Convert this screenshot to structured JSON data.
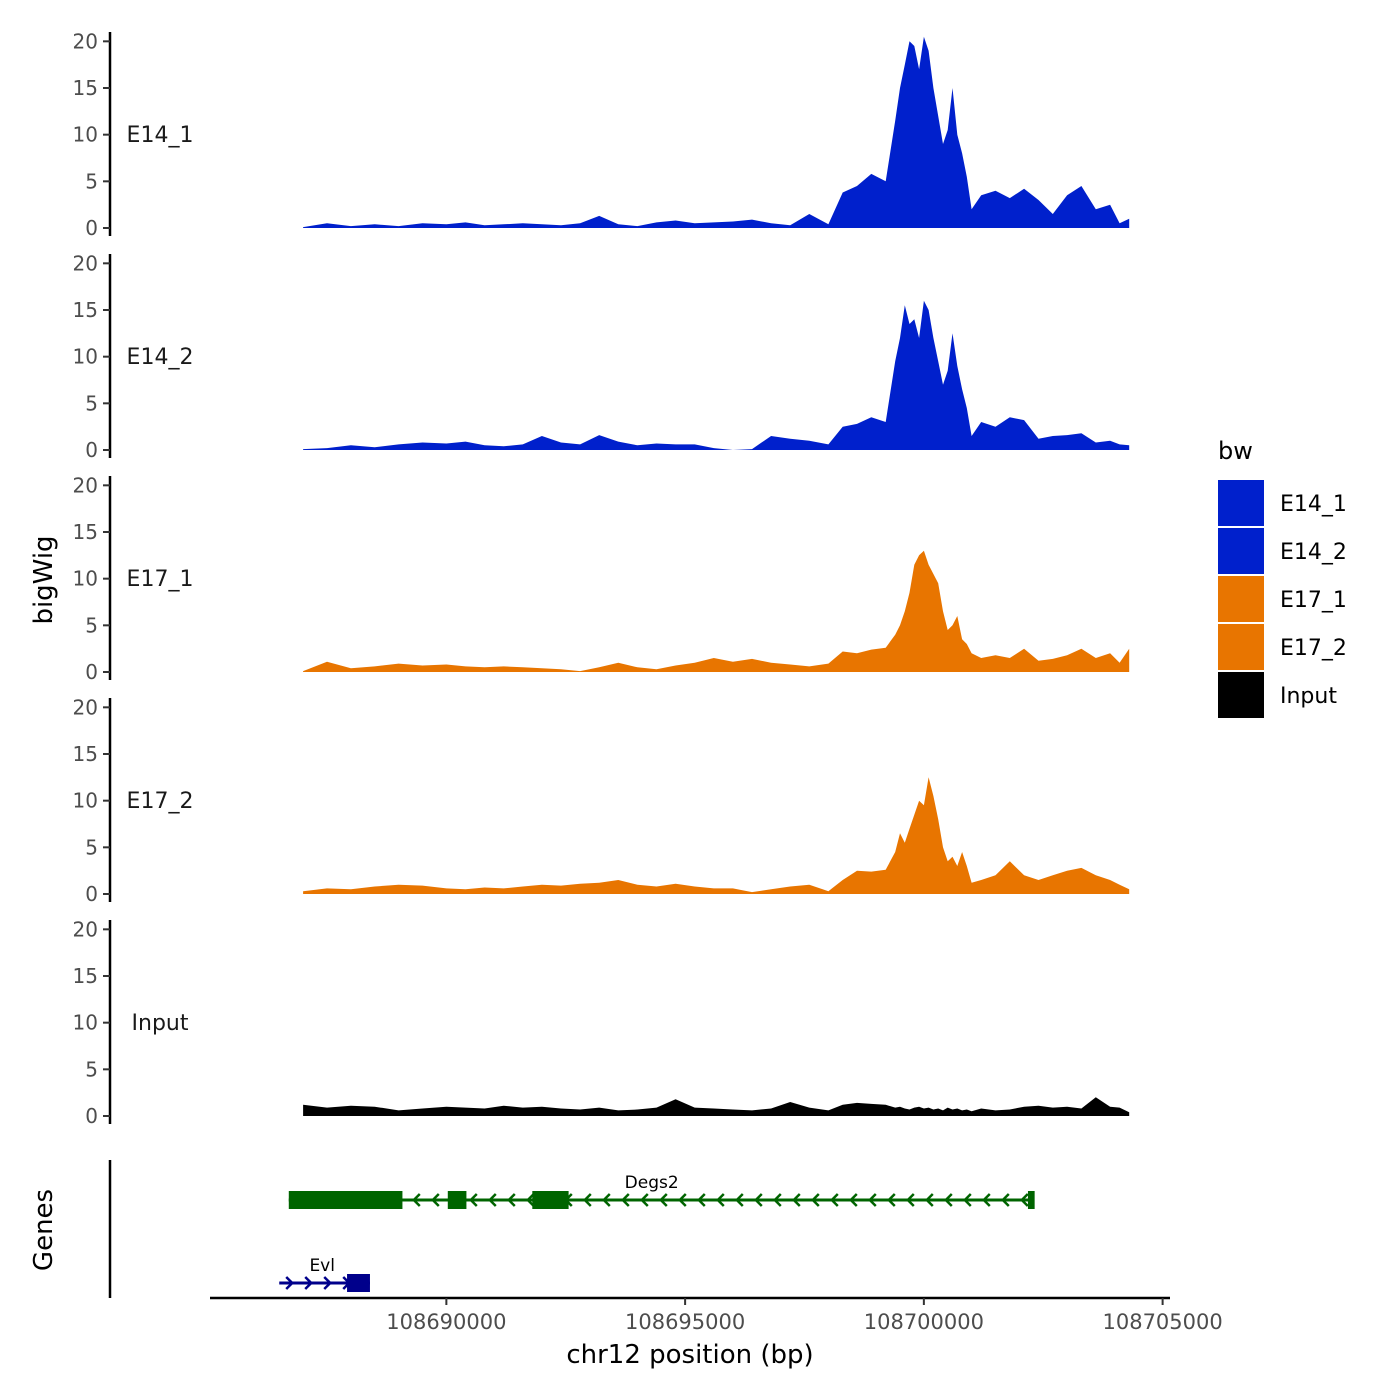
{
  "chart_data": {
    "type": "area",
    "ylabel": "bigWig",
    "genes_label": "Genes",
    "xlabel": "chr12 position (bp)",
    "xlim": [
      108685050,
      108705050
    ],
    "data_xlim": [
      108687000,
      108704300
    ],
    "ylim": [
      0,
      21
    ],
    "y_ticks": [
      "0",
      "5",
      "10",
      "15",
      "20"
    ],
    "x_ticks": [
      {
        "value": 108690000,
        "label": "108690000"
      },
      {
        "value": 108695000,
        "label": "108695000"
      },
      {
        "value": 108700000,
        "label": "108700000"
      },
      {
        "value": 108705000,
        "label": "108705000"
      }
    ],
    "legend": {
      "title": "bw",
      "entries": [
        {
          "label": "E14_1",
          "color": "#0020CC"
        },
        {
          "label": "E14_2",
          "color": "#0020CC"
        },
        {
          "label": "E17_1",
          "color": "#E87500"
        },
        {
          "label": "E17_2",
          "color": "#E87500"
        },
        {
          "label": "Input",
          "color": "#000000"
        }
      ]
    },
    "series": [
      {
        "name": "E14_1",
        "color": "#0020CC",
        "x": [
          108687000,
          108687500,
          108688000,
          108688500,
          108689000,
          108689500,
          108690000,
          108690400,
          108690800,
          108691200,
          108691600,
          108692000,
          108692400,
          108692800,
          108693200,
          108693600,
          108694000,
          108694400,
          108694800,
          108695200,
          108695600,
          108696000,
          108696400,
          108696800,
          108697200,
          108697600,
          108698000,
          108698300,
          108698600,
          108698900,
          108699200,
          108699400,
          108699500,
          108699600,
          108699700,
          108699800,
          108699900,
          108700000,
          108700100,
          108700200,
          108700300,
          108700400,
          108700500,
          108700600,
          108700700,
          108700800,
          108700900,
          108701000,
          108701200,
          108701500,
          108701800,
          108702100,
          108702400,
          108702700,
          108703000,
          108703300,
          108703600,
          108703900,
          108704100,
          108704300
        ],
        "values": [
          0.1,
          0.5,
          0.2,
          0.4,
          0.2,
          0.5,
          0.4,
          0.6,
          0.3,
          0.4,
          0.5,
          0.4,
          0.3,
          0.5,
          1.3,
          0.4,
          0.2,
          0.6,
          0.8,
          0.5,
          0.6,
          0.7,
          0.9,
          0.5,
          0.3,
          1.5,
          0.4,
          3.8,
          4.5,
          5.8,
          5.0,
          11.5,
          15.0,
          17.5,
          20.0,
          19.5,
          17.0,
          20.5,
          19.0,
          15.0,
          12.0,
          9.0,
          10.5,
          15.0,
          10.0,
          8.0,
          5.5,
          2.0,
          3.5,
          4.0,
          3.2,
          4.2,
          3.0,
          1.5,
          3.5,
          4.5,
          2.0,
          2.5,
          0.5,
          1.0
        ]
      },
      {
        "name": "E14_2",
        "color": "#0020CC",
        "x": [
          108687000,
          108687500,
          108688000,
          108688500,
          108689000,
          108689500,
          108690000,
          108690400,
          108690800,
          108691200,
          108691600,
          108692000,
          108692400,
          108692800,
          108693200,
          108693600,
          108694000,
          108694400,
          108694800,
          108695200,
          108695600,
          108696000,
          108696400,
          108696800,
          108697200,
          108697600,
          108698000,
          108698300,
          108698600,
          108698900,
          108699200,
          108699400,
          108699500,
          108699600,
          108699700,
          108699800,
          108699900,
          108700000,
          108700100,
          108700200,
          108700300,
          108700400,
          108700500,
          108700600,
          108700700,
          108700800,
          108700900,
          108701000,
          108701200,
          108701500,
          108701800,
          108702100,
          108702400,
          108702700,
          108703000,
          108703300,
          108703600,
          108703900,
          108704100,
          108704300
        ],
        "values": [
          0.1,
          0.2,
          0.5,
          0.3,
          0.6,
          0.8,
          0.7,
          0.9,
          0.5,
          0.4,
          0.6,
          1.5,
          0.8,
          0.6,
          1.6,
          0.9,
          0.5,
          0.7,
          0.6,
          0.6,
          0.2,
          0.0,
          0.1,
          1.5,
          1.2,
          1.0,
          0.6,
          2.5,
          2.8,
          3.5,
          3.0,
          9.5,
          12.0,
          15.5,
          13.5,
          14.0,
          12.0,
          16.0,
          15.0,
          12.0,
          9.5,
          7.0,
          8.5,
          12.5,
          9.0,
          6.5,
          4.5,
          1.5,
          3.0,
          2.5,
          3.5,
          3.2,
          1.2,
          1.5,
          1.6,
          1.8,
          0.8,
          1.0,
          0.6,
          0.5
        ]
      },
      {
        "name": "E17_1",
        "color": "#E87500",
        "x": [
          108687000,
          108687500,
          108688000,
          108688500,
          108689000,
          108689500,
          108690000,
          108690400,
          108690800,
          108691200,
          108691600,
          108692000,
          108692400,
          108692800,
          108693200,
          108693600,
          108694000,
          108694400,
          108694800,
          108695200,
          108695600,
          108696000,
          108696400,
          108696800,
          108697200,
          108697600,
          108698000,
          108698300,
          108698600,
          108698900,
          108699200,
          108699400,
          108699500,
          108699600,
          108699700,
          108699800,
          108699900,
          108700000,
          108700100,
          108700200,
          108700300,
          108700400,
          108700500,
          108700600,
          108700700,
          108700800,
          108700900,
          108701000,
          108701200,
          108701500,
          108701800,
          108702100,
          108702400,
          108702700,
          108703000,
          108703300,
          108703600,
          108703900,
          108704100,
          108704300
        ],
        "values": [
          0.1,
          1.1,
          0.4,
          0.6,
          0.9,
          0.7,
          0.8,
          0.6,
          0.5,
          0.6,
          0.5,
          0.4,
          0.3,
          0.1,
          0.5,
          1.0,
          0.5,
          0.3,
          0.7,
          1.0,
          1.5,
          1.1,
          1.4,
          1.0,
          0.8,
          0.6,
          0.9,
          2.2,
          2.0,
          2.4,
          2.6,
          4.0,
          5.0,
          6.5,
          8.5,
          11.5,
          12.5,
          13.0,
          11.5,
          10.5,
          9.5,
          6.5,
          4.5,
          5.0,
          6.0,
          3.5,
          3.0,
          2.0,
          1.5,
          1.8,
          1.5,
          2.5,
          1.2,
          1.4,
          1.8,
          2.5,
          1.5,
          2.0,
          1.0,
          2.5
        ]
      },
      {
        "name": "E17_2",
        "color": "#E87500",
        "x": [
          108687000,
          108687500,
          108688000,
          108688500,
          108689000,
          108689500,
          108690000,
          108690400,
          108690800,
          108691200,
          108691600,
          108692000,
          108692400,
          108692800,
          108693200,
          108693600,
          108694000,
          108694400,
          108694800,
          108695200,
          108695600,
          108696000,
          108696400,
          108696800,
          108697200,
          108697600,
          108698000,
          108698300,
          108698600,
          108698900,
          108699200,
          108699400,
          108699500,
          108699600,
          108699700,
          108699800,
          108699900,
          108700000,
          108700100,
          108700200,
          108700300,
          108700400,
          108700500,
          108700600,
          108700700,
          108700800,
          108700900,
          108701000,
          108701200,
          108701500,
          108701800,
          108702100,
          108702400,
          108702700,
          108703000,
          108703300,
          108703600,
          108703900,
          108704100,
          108704300
        ],
        "values": [
          0.3,
          0.6,
          0.5,
          0.8,
          1.0,
          0.9,
          0.6,
          0.5,
          0.7,
          0.6,
          0.8,
          1.0,
          0.9,
          1.1,
          1.2,
          1.5,
          1.0,
          0.8,
          1.1,
          0.8,
          0.6,
          0.6,
          0.2,
          0.5,
          0.8,
          1.0,
          0.3,
          1.5,
          2.5,
          2.4,
          2.6,
          4.5,
          6.5,
          5.5,
          7.0,
          8.5,
          10.0,
          9.5,
          12.5,
          10.5,
          8.0,
          5.0,
          3.5,
          4.0,
          3.0,
          4.5,
          3.0,
          1.2,
          1.5,
          2.0,
          3.5,
          2.0,
          1.5,
          2.0,
          2.5,
          2.8,
          2.0,
          1.5,
          1.0,
          0.5
        ]
      },
      {
        "name": "Input",
        "color": "#000000",
        "x": [
          108687000,
          108687500,
          108688000,
          108688500,
          108689000,
          108689500,
          108690000,
          108690400,
          108690800,
          108691200,
          108691600,
          108692000,
          108692400,
          108692800,
          108693200,
          108693600,
          108694000,
          108694400,
          108694800,
          108695200,
          108695600,
          108696000,
          108696400,
          108696800,
          108697200,
          108697600,
          108698000,
          108698300,
          108698600,
          108698900,
          108699200,
          108699400,
          108699500,
          108699600,
          108699700,
          108699800,
          108699900,
          108700000,
          108700100,
          108700200,
          108700300,
          108700400,
          108700500,
          108700600,
          108700700,
          108700800,
          108700900,
          108701000,
          108701200,
          108701500,
          108701800,
          108702100,
          108702400,
          108702700,
          108703000,
          108703300,
          108703600,
          108703900,
          108704100,
          108704300
        ],
        "values": [
          1.2,
          0.9,
          1.1,
          1.0,
          0.6,
          0.8,
          1.0,
          0.9,
          0.8,
          1.1,
          0.9,
          1.0,
          0.8,
          0.7,
          0.9,
          0.6,
          0.7,
          0.9,
          1.8,
          0.9,
          0.8,
          0.7,
          0.6,
          0.8,
          1.5,
          0.9,
          0.6,
          1.2,
          1.4,
          1.3,
          1.2,
          0.9,
          1.0,
          0.8,
          0.7,
          0.9,
          1.0,
          0.8,
          0.9,
          0.7,
          0.8,
          0.6,
          0.9,
          0.7,
          0.8,
          0.6,
          0.7,
          0.5,
          0.8,
          0.6,
          0.7,
          1.0,
          1.1,
          0.9,
          1.0,
          0.8,
          2.0,
          1.0,
          0.9,
          0.4
        ]
      }
    ],
    "genes": [
      {
        "name": "Degs2",
        "color": "#006400",
        "start": 108686700,
        "end": 108702300,
        "strand": "-",
        "row": 0,
        "exons": [
          [
            108686700,
            108689080
          ],
          [
            108690030,
            108690420
          ],
          [
            108691800,
            108692560
          ],
          [
            108702180,
            108702320
          ]
        ]
      },
      {
        "name": "Evl",
        "color": "#00008B",
        "start": 108686500,
        "end": 108688400,
        "strand": "+",
        "row": 1,
        "exons": [
          [
            108687920,
            108688400
          ]
        ]
      }
    ]
  }
}
